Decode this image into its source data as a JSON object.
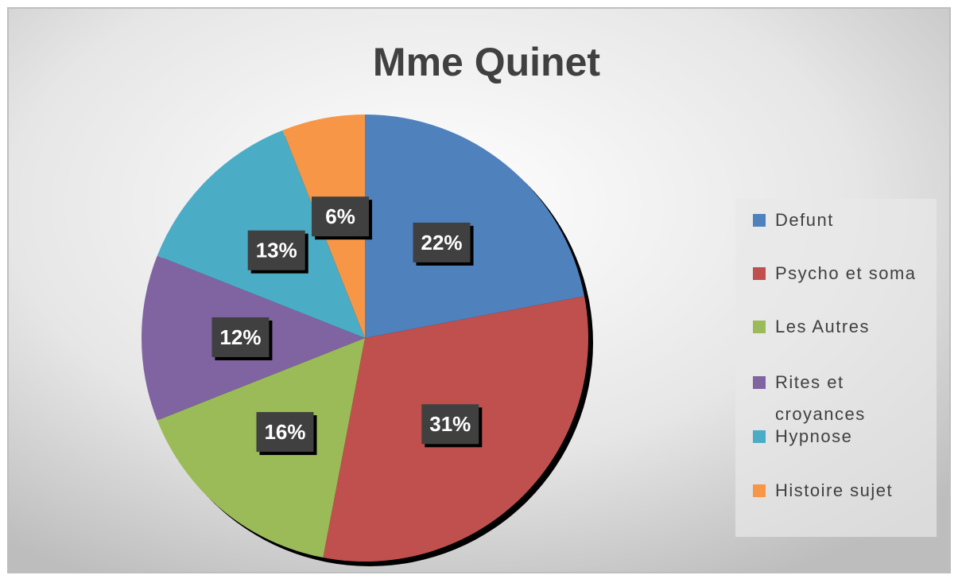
{
  "chart_data": {
    "type": "pie",
    "title": "Mme Quinet",
    "categories": [
      "Defunt",
      "Psycho et soma",
      "Les Autres",
      "Rites et croyances",
      "Hypnose",
      "Histoire sujet"
    ],
    "values": [
      22,
      31,
      16,
      12,
      13,
      6
    ],
    "value_labels": [
      "22%",
      "31%",
      "16%",
      "12%",
      "13%",
      "6%"
    ],
    "colors": [
      "#4f81bd",
      "#c0504d",
      "#9bbb59",
      "#8064a2",
      "#4bacc6",
      "#f79646"
    ],
    "legend": "right"
  }
}
